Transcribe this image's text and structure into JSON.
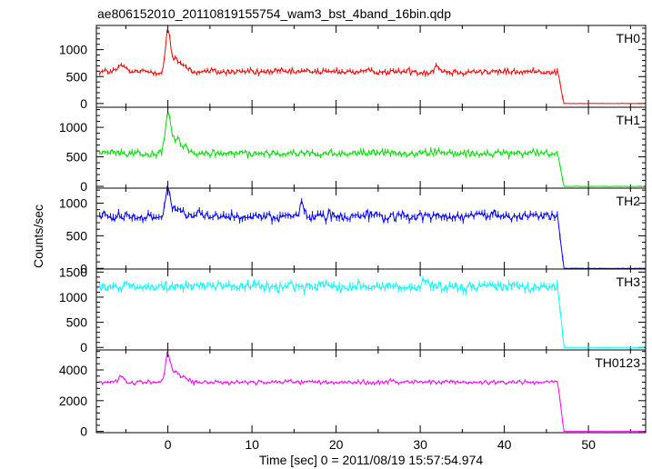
{
  "chart_data": {
    "type": "line",
    "title": "ae806152010_20110819155754_wam3_bst_4band_16bin.qdp",
    "xlabel": "Time [sec] 0 = 2011/08/19 15:57:54.974",
    "ylabel": "Counts/sec",
    "xlim": [
      -8.5,
      56.8
    ],
    "xticks": [
      0,
      10,
      20,
      30,
      40,
      50
    ],
    "grid": false,
    "series": [
      {
        "name": "TH0",
        "color": "#ff0000",
        "ylim": [
          -70,
          1450
        ],
        "yticks": [
          0,
          500,
          1000
        ],
        "baseline": 590,
        "noise": 55,
        "drop_time": 47,
        "post_drop_value": 0,
        "features": [
          {
            "t": -5.5,
            "height": 130,
            "width": 0.35
          },
          {
            "t": 0.0,
            "height": 760,
            "width": 0.28
          },
          {
            "t": 0.9,
            "height": 210,
            "width": 0.45
          },
          {
            "t": 2.0,
            "height": 110,
            "width": 0.45
          },
          {
            "t": 32.0,
            "height": 110,
            "width": 0.3
          }
        ]
      },
      {
        "name": "TH1",
        "color": "#00dd00",
        "ylim": [
          -30,
          1340
        ],
        "yticks": [
          0,
          500,
          1000
        ],
        "baseline": 560,
        "noise": 55,
        "drop_time": 47,
        "post_drop_value": 0,
        "features": [
          {
            "t": 0.0,
            "height": 640,
            "width": 0.28
          },
          {
            "t": 0.9,
            "height": 230,
            "width": 0.55
          },
          {
            "t": 2.0,
            "height": 90,
            "width": 0.5
          }
        ]
      },
      {
        "name": "TH2",
        "color": "#0000ff",
        "ylim": [
          -10,
          1230
        ],
        "yticks": [
          0,
          500,
          1000
        ],
        "baseline": 800,
        "noise": 70,
        "drop_time": 47,
        "post_drop_value": 0,
        "features": [
          {
            "t": 0.0,
            "height": 390,
            "width": 0.28
          },
          {
            "t": 1.2,
            "height": 110,
            "width": 0.45
          },
          {
            "t": 16.0,
            "height": 160,
            "width": 0.25
          }
        ]
      },
      {
        "name": "TH3",
        "color": "#00ffff",
        "ylim": [
          -50,
          1560
        ],
        "yticks": [
          0,
          500,
          1000,
          1500
        ],
        "baseline": 1210,
        "noise": 90,
        "drop_time": 47,
        "post_drop_value": 0,
        "features": [
          {
            "t": 30.5,
            "height": 190,
            "width": 0.25
          }
        ]
      },
      {
        "name": "TH0123",
        "color": "#ff00ff",
        "ylim": [
          -80,
          5300
        ],
        "yticks": [
          0,
          2000,
          4000
        ],
        "baseline": 3200,
        "noise": 120,
        "drop_time": 47,
        "post_drop_value": 0,
        "features": [
          {
            "t": -5.5,
            "height": 350,
            "width": 0.35
          },
          {
            "t": 0.0,
            "height": 1800,
            "width": 0.28
          },
          {
            "t": 0.9,
            "height": 650,
            "width": 0.5
          },
          {
            "t": 2.0,
            "height": 250,
            "width": 0.45
          }
        ]
      }
    ]
  }
}
